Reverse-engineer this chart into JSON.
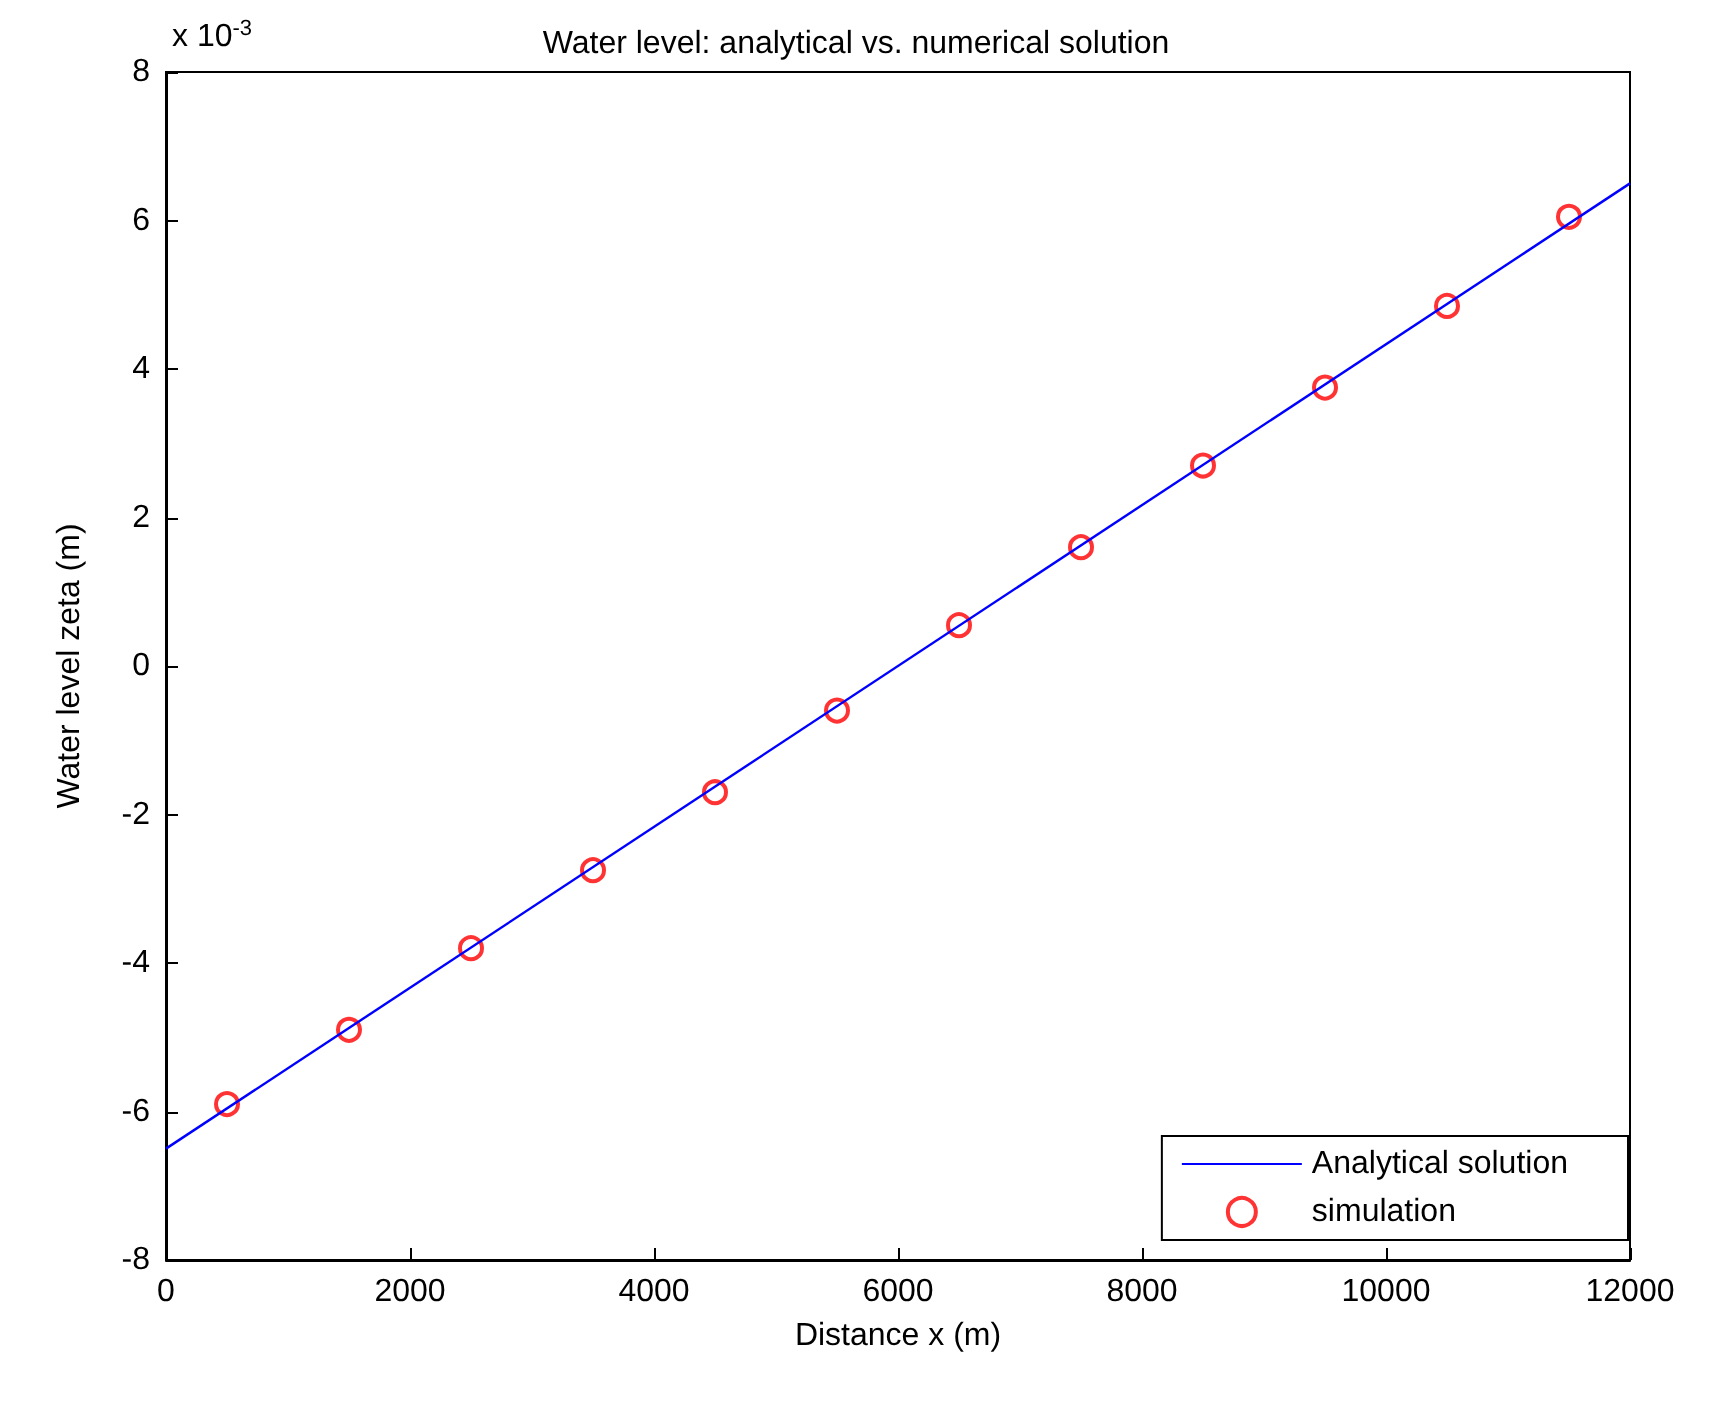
{
  "chart_data": {
    "type": "scatter",
    "title": "Water level: analytical vs. numerical solution",
    "xlabel": "Distance x (m)",
    "ylabel": "Water level zeta (m)",
    "annotations": [
      "x 10$^{-3}$"
    ],
    "xlim": [
      0,
      12000
    ],
    "xticks": [
      0,
      2000,
      4000,
      6000,
      8000,
      10000,
      12000
    ],
    "ylim": [
      -8,
      8
    ],
    "yticks": [
      -8,
      -6,
      -4,
      -2,
      0,
      2,
      4,
      6,
      8
    ],
    "grid": false,
    "legend": "bottom right",
    "series": [
      {
        "name": "Analytical solution",
        "type": "line",
        "color": "#0000ff",
        "marker": "none",
        "line_style": "solid",
        "x": [
          0,
          12000
        ],
        "values": [
          -6.5,
          6.5
        ]
      },
      {
        "name": "simulation",
        "color": "#ff0000",
        "marker": "circle",
        "x": [
          500,
          1500,
          2500,
          3500,
          4500,
          5500,
          6500,
          7500,
          8500,
          9500,
          10500,
          11500
        ],
        "values": [
          -5.9,
          -4.9,
          -3.8,
          -2.75,
          -1.7,
          -0.6,
          0.55,
          1.6,
          2.7,
          3.75,
          4.85,
          6.05
        ]
      }
    ]
  }
}
